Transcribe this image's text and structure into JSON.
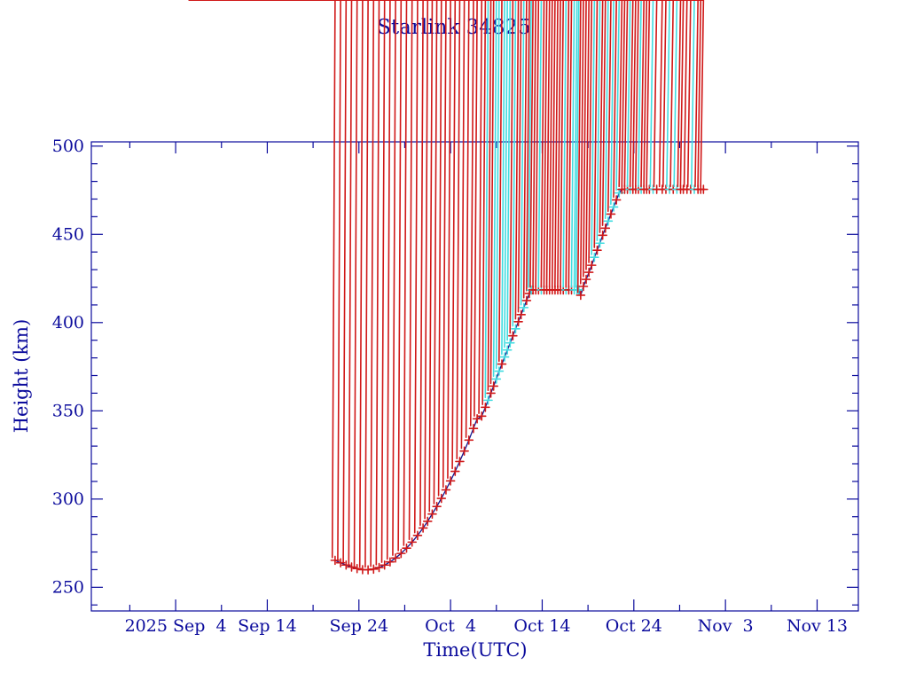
{
  "colors": {
    "ink": "#0b0b9c",
    "line": "#14148c",
    "marker_red": "#d01818",
    "marker_cyan": "#40dce0",
    "background": "#ffffff"
  },
  "chart_data": {
    "type": "line",
    "title": "Starlink 34825",
    "xlabel": "Time(UTC)",
    "ylabel": "Height (km)",
    "grid": false,
    "legend": "none",
    "x_axis": {
      "day_zero_date": "2025 Sep 4",
      "units": "days since 2025 Sep 4 (UTC)",
      "range_days": [
        -9.2,
        74.5
      ],
      "major_ticks_days": [
        0,
        10,
        20,
        30,
        40,
        50,
        60,
        70
      ],
      "major_tick_labels": [
        "2025 Sep  4",
        "Sep 14",
        "Sep 24",
        "Oct  4",
        "Oct 14",
        "Oct 24",
        "Nov  3",
        "Nov 13"
      ],
      "minor_ticks_days": [
        -5,
        5,
        15,
        25,
        35,
        45,
        55,
        65
      ]
    },
    "y_axis": {
      "units": "km",
      "range_km": [
        236.6,
        502.4
      ],
      "major_ticks_km": [
        250,
        300,
        350,
        400,
        450,
        500
      ],
      "major_tick_labels": [
        "250",
        "300",
        "350",
        "400",
        "450",
        "500"
      ],
      "minor_tick_step_km": 10
    },
    "annotations": {
      "start": {
        "day": 17.4,
        "height_km": 265.3,
        "date_approx": "2025 Sep 21"
      },
      "minimum": {
        "day": 20.7,
        "height_km": 259.9,
        "date_approx": "2025 Sep 24"
      },
      "plateau_1": {
        "height_km": 418.5,
        "days": [
          38.8,
          44.0
        ],
        "dates_approx": "Oct 12 - Oct 18"
      },
      "plateau_2": {
        "height_km": 475.5,
        "days": [
          48.7,
          57.6
        ],
        "dates_approx": "Oct 22 - Oct 31"
      },
      "end": {
        "day": 57.6,
        "height_km": 475.5,
        "date_approx": "2025 Oct 31"
      }
    },
    "series": [
      {
        "name": "height",
        "marker": "asterisk",
        "marker_color_key": {
          "r": "marker_red",
          "c": "marker_cyan"
        },
        "points": [
          [
            17.4,
            265.3,
            "r"
          ],
          [
            18.0,
            263.9,
            "r"
          ],
          [
            18.6,
            262.6,
            "r"
          ],
          [
            19.2,
            261.5,
            "r"
          ],
          [
            19.8,
            260.6,
            "r"
          ],
          [
            20.4,
            260.0,
            "r"
          ],
          [
            21.0,
            259.9,
            "r"
          ],
          [
            21.6,
            260.3,
            "r"
          ],
          [
            22.2,
            261.2,
            "r"
          ],
          [
            22.8,
            262.6,
            "r"
          ],
          [
            23.4,
            264.4,
            "r"
          ],
          [
            24.0,
            266.6,
            "r"
          ],
          [
            24.6,
            269.2,
            "r"
          ],
          [
            25.2,
            272.2,
            "r"
          ],
          [
            25.8,
            275.6,
            "r"
          ],
          [
            26.4,
            279.4,
            "r"
          ],
          [
            27.0,
            283.6,
            "r"
          ],
          [
            27.5,
            287.4,
            "r"
          ],
          [
            28.0,
            291.5,
            "r"
          ],
          [
            28.5,
            295.8,
            "r"
          ],
          [
            29.0,
            300.4,
            "r"
          ],
          [
            29.5,
            305.2,
            "r"
          ],
          [
            30.0,
            310.3,
            "r"
          ],
          [
            30.5,
            315.7,
            "r"
          ],
          [
            31.0,
            321.3,
            "r"
          ],
          [
            31.5,
            327.2,
            "r"
          ],
          [
            32.0,
            333.4,
            "r"
          ],
          [
            32.5,
            340.0,
            "r"
          ],
          [
            32.9,
            345.5,
            "r"
          ],
          [
            33.4,
            347.0,
            "r"
          ],
          [
            33.8,
            352.0,
            "r"
          ],
          [
            34.1,
            356.0,
            "c"
          ],
          [
            34.4,
            360.0,
            "r"
          ],
          [
            34.7,
            364.0,
            "r"
          ],
          [
            35.0,
            368.0,
            "c"
          ],
          [
            35.3,
            372.5,
            "c"
          ],
          [
            35.6,
            376.5,
            "r"
          ],
          [
            35.9,
            380.5,
            "c"
          ],
          [
            36.2,
            384.5,
            "c"
          ],
          [
            36.5,
            388.5,
            "c"
          ],
          [
            36.8,
            392.5,
            "r"
          ],
          [
            37.1,
            396.5,
            "c"
          ],
          [
            37.4,
            400.5,
            "r"
          ],
          [
            37.7,
            404.5,
            "r"
          ],
          [
            38.0,
            408.5,
            "c"
          ],
          [
            38.3,
            412.5,
            "r"
          ],
          [
            38.6,
            416.5,
            "r"
          ],
          [
            38.8,
            418.4,
            "c"
          ],
          [
            39.0,
            418.5,
            "r"
          ],
          [
            39.3,
            418.5,
            "r"
          ],
          [
            39.6,
            418.5,
            "r"
          ],
          [
            39.9,
            418.5,
            "c"
          ],
          [
            40.2,
            418.5,
            "r"
          ],
          [
            40.5,
            418.5,
            "r"
          ],
          [
            40.8,
            418.5,
            "r"
          ],
          [
            41.1,
            418.5,
            "r"
          ],
          [
            41.4,
            418.5,
            "r"
          ],
          [
            41.7,
            418.5,
            "r"
          ],
          [
            42.0,
            418.5,
            "r"
          ],
          [
            42.3,
            418.5,
            "r"
          ],
          [
            42.6,
            418.5,
            "c"
          ],
          [
            42.9,
            418.5,
            "r"
          ],
          [
            43.2,
            418.5,
            "r"
          ],
          [
            43.5,
            418.5,
            "c"
          ],
          [
            43.8,
            418.5,
            "c"
          ],
          [
            44.0,
            418.5,
            "c"
          ],
          [
            44.2,
            415.5,
            "r"
          ],
          [
            44.5,
            420.5,
            "r"
          ],
          [
            44.8,
            424.5,
            "r"
          ],
          [
            45.1,
            428.5,
            "r"
          ],
          [
            45.4,
            432.5,
            "r"
          ],
          [
            45.7,
            437.0,
            "c"
          ],
          [
            46.0,
            441.0,
            "r"
          ],
          [
            46.3,
            445.0,
            "c"
          ],
          [
            46.6,
            449.5,
            "r"
          ],
          [
            46.9,
            453.5,
            "r"
          ],
          [
            47.2,
            457.5,
            "c"
          ],
          [
            47.5,
            461.5,
            "r"
          ],
          [
            47.8,
            465.5,
            "c"
          ],
          [
            48.1,
            469.5,
            "r"
          ],
          [
            48.4,
            473.5,
            "c"
          ],
          [
            48.7,
            475.5,
            "r"
          ],
          [
            49.0,
            475.5,
            "r"
          ],
          [
            49.3,
            475.5,
            "r"
          ],
          [
            49.6,
            475.5,
            "c"
          ],
          [
            49.9,
            475.5,
            "r"
          ],
          [
            50.2,
            475.5,
            "r"
          ],
          [
            50.5,
            475.5,
            "r"
          ],
          [
            50.8,
            475.5,
            "c"
          ],
          [
            51.1,
            475.5,
            "r"
          ],
          [
            51.4,
            475.5,
            "r"
          ],
          [
            51.7,
            475.5,
            "r"
          ],
          [
            52.1,
            475.5,
            "c"
          ],
          [
            52.5,
            475.5,
            "r"
          ],
          [
            53.1,
            475.5,
            "r"
          ],
          [
            53.5,
            475.5,
            "r"
          ],
          [
            53.9,
            475.5,
            "c"
          ],
          [
            54.3,
            475.5,
            "r"
          ],
          [
            54.7,
            475.5,
            "c"
          ],
          [
            55.1,
            475.5,
            "r"
          ],
          [
            55.4,
            475.5,
            "r"
          ],
          [
            55.8,
            475.5,
            "r"
          ],
          [
            56.2,
            475.5,
            "r"
          ],
          [
            56.6,
            475.5,
            "c"
          ],
          [
            57.0,
            475.5,
            "r"
          ],
          [
            57.3,
            475.5,
            "r"
          ],
          [
            57.6,
            475.5,
            "r"
          ]
        ]
      }
    ]
  }
}
